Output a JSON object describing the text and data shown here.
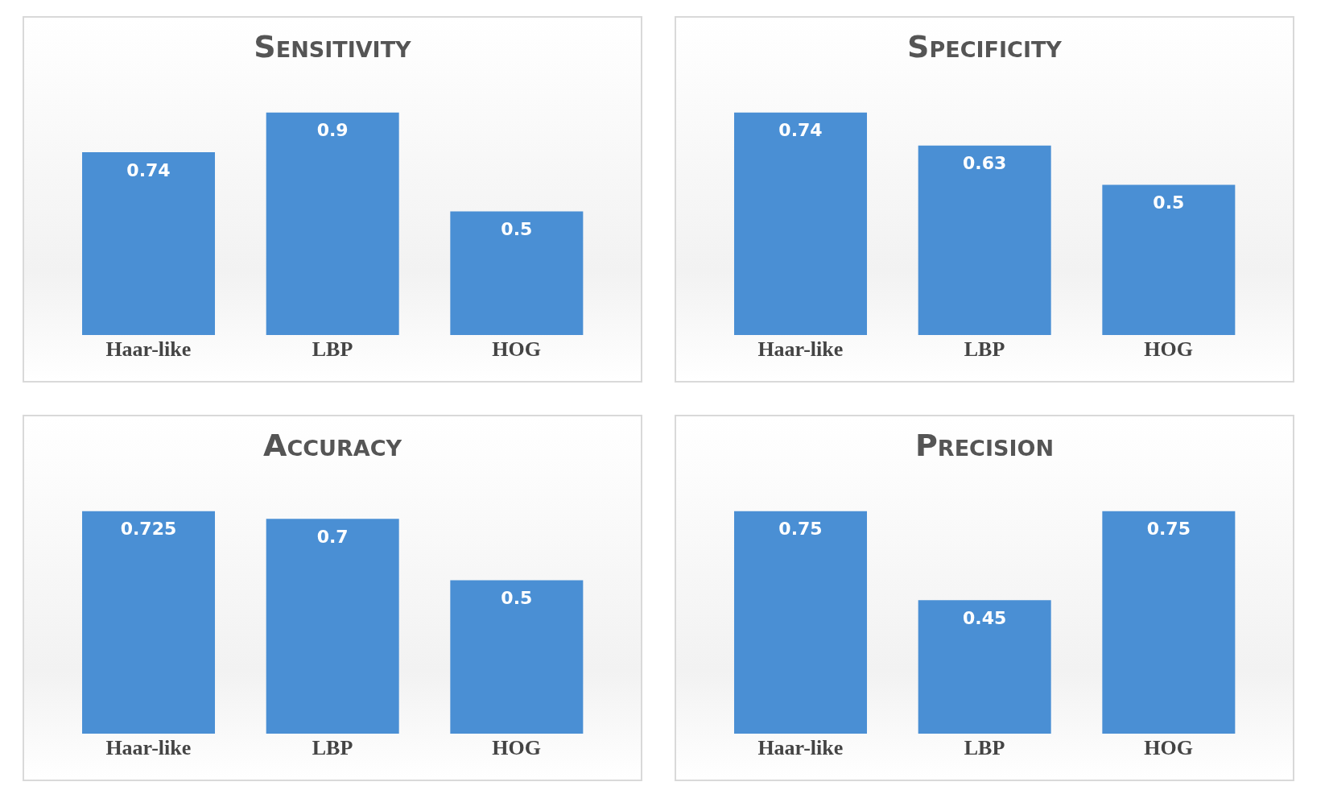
{
  "chart_data": [
    {
      "type": "bar",
      "title": "Sensitivity",
      "categories": [
        "Haar-like",
        "LBP",
        "HOG"
      ],
      "values": [
        0.74,
        0.9,
        0.5
      ],
      "color": "#4a8fd4",
      "data_labels": true
    },
    {
      "type": "bar",
      "title": "Specificity",
      "categories": [
        "Haar-like",
        "LBP",
        "HOG"
      ],
      "values": [
        0.74,
        0.63,
        0.5
      ],
      "color": "#4a8fd4",
      "data_labels": true
    },
    {
      "type": "bar",
      "title": "Accuracy",
      "categories": [
        "Haar-like",
        "LBP",
        "HOG"
      ],
      "values": [
        0.725,
        0.7,
        0.5
      ],
      "color": "#4a8fd4",
      "data_labels": true
    },
    {
      "type": "bar",
      "title": "Precision",
      "categories": [
        "Haar-like",
        "LBP",
        "HOG"
      ],
      "values": [
        0.75,
        0.45,
        0.75
      ],
      "color": "#4a8fd4",
      "data_labels": true
    }
  ]
}
